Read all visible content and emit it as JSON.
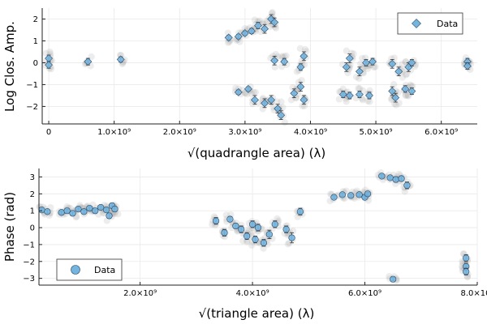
{
  "chart_data": [
    {
      "type": "scatter",
      "xlabel": "√(quadrangle area) (λ)",
      "ylabel": "Log Clos. Amp.",
      "xticks": [
        {
          "value": 0,
          "label": "0"
        },
        {
          "value": 1.0,
          "label": "1.0×10⁹"
        },
        {
          "value": 2.0,
          "label": "2.0×10⁹"
        },
        {
          "value": 3.0,
          "label": "3.0×10⁹"
        },
        {
          "value": 4.0,
          "label": "4.0×10⁹"
        },
        {
          "value": 5.0,
          "label": "5.0×10⁹"
        },
        {
          "value": 6.0,
          "label": "6.0×10⁹"
        }
      ],
      "yticks": [
        {
          "value": 2,
          "label": "2"
        },
        {
          "value": 1,
          "label": "1"
        },
        {
          "value": 0,
          "label": "0"
        },
        {
          "value": -1,
          "label": "−1"
        },
        {
          "value": -2,
          "label": "−2"
        }
      ],
      "xlim": [
        -0.1,
        6.55
      ],
      "ylim": [
        -2.8,
        2.5
      ],
      "grid": true,
      "legend": {
        "position": "top-right",
        "label": "Data",
        "marker": "diamond"
      },
      "series": [
        {
          "name": "Data",
          "marker": "diamond",
          "points": [
            {
              "x": 0.0,
              "y": 0.2,
              "err": 0.15
            },
            {
              "x": 0.0,
              "y": -0.1,
              "err": 0.15
            },
            {
              "x": 0.6,
              "y": 0.05,
              "err": 0.15
            },
            {
              "x": 1.1,
              "y": 0.15,
              "err": 0.12
            },
            {
              "x": 2.75,
              "y": 1.15,
              "err": 0.1
            },
            {
              "x": 2.9,
              "y": 1.2,
              "err": 0.1
            },
            {
              "x": 3.0,
              "y": 1.35,
              "err": 0.1
            },
            {
              "x": 3.1,
              "y": 1.45,
              "err": 0.12
            },
            {
              "x": 3.2,
              "y": 1.7,
              "err": 0.15
            },
            {
              "x": 3.3,
              "y": 1.55,
              "err": 0.2
            },
            {
              "x": 3.4,
              "y": 2.0,
              "err": 0.2
            },
            {
              "x": 3.45,
              "y": 1.85,
              "err": 0.2
            },
            {
              "x": 2.9,
              "y": -1.35,
              "err": 0.1
            },
            {
              "x": 3.05,
              "y": -1.2,
              "err": 0.1
            },
            {
              "x": 3.15,
              "y": -1.7,
              "err": 0.2
            },
            {
              "x": 3.3,
              "y": -1.85,
              "err": 0.2
            },
            {
              "x": 3.4,
              "y": -1.7,
              "err": 0.2
            },
            {
              "x": 3.5,
              "y": -2.1,
              "err": 0.2
            },
            {
              "x": 3.55,
              "y": -2.4,
              "err": 0.2
            },
            {
              "x": 3.45,
              "y": 0.1,
              "err": 0.2
            },
            {
              "x": 3.6,
              "y": 0.05,
              "err": 0.15
            },
            {
              "x": 3.75,
              "y": -1.4,
              "err": 0.2
            },
            {
              "x": 3.85,
              "y": -1.1,
              "err": 0.2
            },
            {
              "x": 3.9,
              "y": -1.7,
              "err": 0.2
            },
            {
              "x": 3.9,
              "y": 0.3,
              "err": 0.2
            },
            {
              "x": 3.85,
              "y": -0.2,
              "err": 0.15
            },
            {
              "x": 4.6,
              "y": 0.2,
              "err": 0.2
            },
            {
              "x": 4.55,
              "y": -0.2,
              "err": 0.2
            },
            {
              "x": 4.75,
              "y": -0.4,
              "err": 0.2
            },
            {
              "x": 4.85,
              "y": 0.0,
              "err": 0.15
            },
            {
              "x": 4.95,
              "y": 0.05,
              "err": 0.15
            },
            {
              "x": 4.5,
              "y": -1.45,
              "err": 0.15
            },
            {
              "x": 4.6,
              "y": -1.5,
              "err": 0.15
            },
            {
              "x": 4.75,
              "y": -1.45,
              "err": 0.15
            },
            {
              "x": 4.9,
              "y": -1.5,
              "err": 0.15
            },
            {
              "x": 5.25,
              "y": -0.05,
              "err": 0.2
            },
            {
              "x": 5.35,
              "y": -0.4,
              "err": 0.2
            },
            {
              "x": 5.5,
              "y": -0.2,
              "err": 0.2
            },
            {
              "x": 5.55,
              "y": 0.0,
              "err": 0.15
            },
            {
              "x": 5.25,
              "y": -1.3,
              "err": 0.2
            },
            {
              "x": 5.3,
              "y": -1.6,
              "err": 0.2
            },
            {
              "x": 5.45,
              "y": -1.2,
              "err": 0.15
            },
            {
              "x": 5.55,
              "y": -1.3,
              "err": 0.15
            },
            {
              "x": 6.4,
              "y": 0.05,
              "err": 0.15
            },
            {
              "x": 6.4,
              "y": -0.15,
              "err": 0.15
            }
          ]
        }
      ]
    },
    {
      "type": "scatter",
      "xlabel": "√(triangle area) (λ)",
      "ylabel": "Phase (rad)",
      "xticks": [
        {
          "value": 2.0,
          "label": "2.0×10⁹"
        },
        {
          "value": 4.0,
          "label": "4.0×10⁹"
        },
        {
          "value": 6.0,
          "label": "6.0×10⁹"
        },
        {
          "value": 8.0,
          "label": "8.0×10⁹"
        }
      ],
      "yticks": [
        {
          "value": 3,
          "label": "3"
        },
        {
          "value": 2,
          "label": "2"
        },
        {
          "value": 1,
          "label": "1"
        },
        {
          "value": 0,
          "label": "0"
        },
        {
          "value": -1,
          "label": "−1"
        },
        {
          "value": -2,
          "label": "−2"
        },
        {
          "value": -3,
          "label": "−3"
        }
      ],
      "xlim": [
        0.2,
        8.0
      ],
      "ylim": [
        -3.4,
        3.5
      ],
      "grid": true,
      "legend": {
        "position": "bottom-left",
        "label": "Data",
        "marker": "circle"
      },
      "series": [
        {
          "name": "Data",
          "marker": "circle",
          "points": [
            {
              "x": 0.25,
              "y": 1.05,
              "err": 0.1
            },
            {
              "x": 0.35,
              "y": 0.95,
              "err": 0.1
            },
            {
              "x": 0.6,
              "y": 0.9,
              "err": 0.1
            },
            {
              "x": 0.7,
              "y": 1.0,
              "err": 0.1
            },
            {
              "x": 0.8,
              "y": 0.85,
              "err": 0.1
            },
            {
              "x": 0.9,
              "y": 1.1,
              "err": 0.1
            },
            {
              "x": 1.0,
              "y": 0.95,
              "err": 0.1
            },
            {
              "x": 1.1,
              "y": 1.15,
              "err": 0.1
            },
            {
              "x": 1.2,
              "y": 1.0,
              "err": 0.1
            },
            {
              "x": 1.3,
              "y": 1.2,
              "err": 0.1
            },
            {
              "x": 1.4,
              "y": 1.05,
              "err": 0.1
            },
            {
              "x": 1.5,
              "y": 1.3,
              "err": 0.15
            },
            {
              "x": 1.45,
              "y": 0.7,
              "err": 0.15
            },
            {
              "x": 1.55,
              "y": 1.1,
              "err": 0.15
            },
            {
              "x": 3.35,
              "y": 0.4,
              "err": 0.2
            },
            {
              "x": 3.5,
              "y": -0.3,
              "err": 0.2
            },
            {
              "x": 3.6,
              "y": 0.5,
              "err": 0.15
            },
            {
              "x": 3.7,
              "y": 0.1,
              "err": 0.15
            },
            {
              "x": 3.8,
              "y": -0.1,
              "err": 0.2
            },
            {
              "x": 3.9,
              "y": -0.5,
              "err": 0.2
            },
            {
              "x": 4.0,
              "y": 0.2,
              "err": 0.2
            },
            {
              "x": 4.05,
              "y": -0.7,
              "err": 0.2
            },
            {
              "x": 4.1,
              "y": 0.0,
              "err": 0.2
            },
            {
              "x": 4.2,
              "y": -0.9,
              "err": 0.2
            },
            {
              "x": 4.3,
              "y": -0.4,
              "err": 0.25
            },
            {
              "x": 4.4,
              "y": 0.2,
              "err": 0.2
            },
            {
              "x": 4.6,
              "y": -0.1,
              "err": 0.2
            },
            {
              "x": 4.7,
              "y": -0.6,
              "err": 0.3
            },
            {
              "x": 4.85,
              "y": 0.95,
              "err": 0.2
            },
            {
              "x": 5.45,
              "y": 1.8,
              "err": 0.1
            },
            {
              "x": 5.6,
              "y": 1.95,
              "err": 0.1
            },
            {
              "x": 5.75,
              "y": 1.9,
              "err": 0.1
            },
            {
              "x": 5.9,
              "y": 1.95,
              "err": 0.1
            },
            {
              "x": 6.0,
              "y": 1.8,
              "err": 0.1
            },
            {
              "x": 6.05,
              "y": 2.0,
              "err": 0.1
            },
            {
              "x": 6.3,
              "y": 3.05,
              "err": 0.1
            },
            {
              "x": 6.45,
              "y": 2.95,
              "err": 0.1
            },
            {
              "x": 6.55,
              "y": 2.85,
              "err": 0.15
            },
            {
              "x": 6.65,
              "y": 2.9,
              "err": 0.15
            },
            {
              "x": 6.75,
              "y": 2.5,
              "err": 0.2
            },
            {
              "x": 6.5,
              "y": -3.05,
              "err": 0.1
            },
            {
              "x": 7.8,
              "y": -1.8,
              "err": 0.2
            },
            {
              "x": 7.8,
              "y": -2.3,
              "err": 0.2
            },
            {
              "x": 7.8,
              "y": -2.6,
              "err": 0.2
            }
          ]
        }
      ]
    }
  ]
}
